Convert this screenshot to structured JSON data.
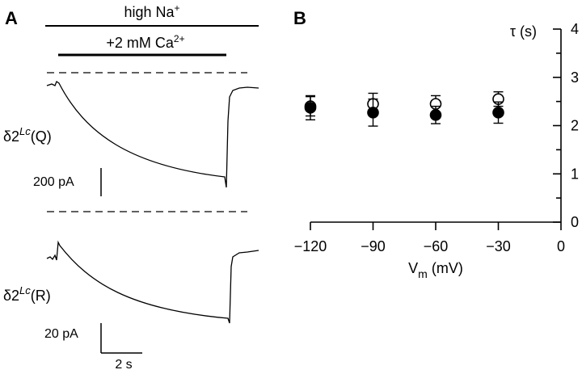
{
  "panel_a": {
    "letter": "A",
    "bar_top_label": "high Na",
    "bar_top_sup": "+",
    "bar_mid_label": "+2 mM Ca",
    "bar_mid_sup": "2+",
    "trace1": {
      "prefix": "δ2",
      "sup": "Lc",
      "suffix": "(Q)"
    },
    "trace2": {
      "prefix": "δ2",
      "sup": "Lc",
      "suffix": "(R)"
    },
    "scale1_label": "200 pA",
    "scale2_label": "20 pA",
    "time_scale_label": "2 s"
  },
  "chart_data": {
    "type": "scatter",
    "panel_letter": "B",
    "ylabel": "τ (s)",
    "xlabel_main": "V",
    "xlabel_sub": "m",
    "xlabel_unit": " (mV)",
    "xlim": [
      -130,
      0
    ],
    "ylim": [
      0,
      4
    ],
    "xticks": [
      -120,
      -90,
      -60,
      -30,
      0
    ],
    "yticks": [
      0,
      1,
      2,
      3,
      4
    ],
    "series": [
      {
        "marker": "open",
        "x": [
          -120,
          -90,
          -60,
          -30
        ],
        "y": [
          2.4,
          2.45,
          2.45,
          2.55
        ],
        "err": [
          0.2,
          0.22,
          0.17,
          0.15
        ]
      },
      {
        "marker": "filled",
        "x": [
          -120,
          -90,
          -60,
          -30
        ],
        "y": [
          2.37,
          2.27,
          2.22,
          2.27
        ],
        "err": [
          0.25,
          0.28,
          0.18,
          0.22
        ]
      }
    ]
  }
}
